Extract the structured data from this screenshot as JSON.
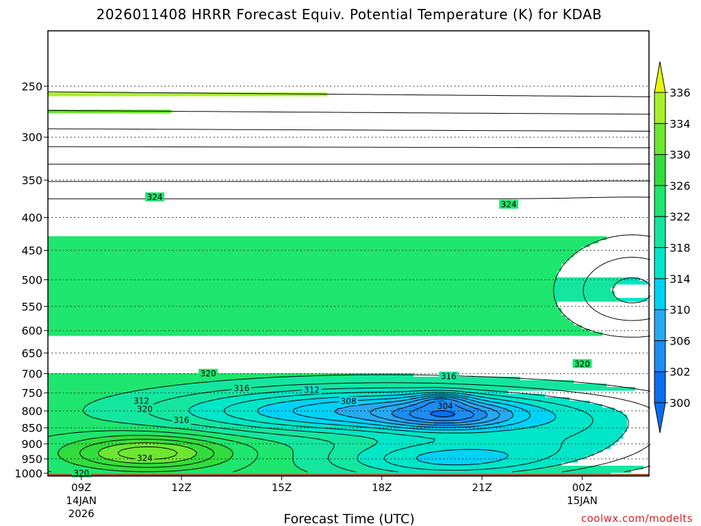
{
  "chart_data": {
    "type": "heatmap",
    "title": "2026011408 HRRR Forecast Equiv. Potential Temperature (K) for KDAB",
    "xlabel": "Forecast Time (UTC)",
    "ylabel": "",
    "y_axis": {
      "scale": "log",
      "inverted": true,
      "range": [
        1010,
        205
      ],
      "ticks": [
        250,
        300,
        350,
        400,
        450,
        500,
        550,
        600,
        650,
        700,
        750,
        800,
        850,
        900,
        950,
        1000
      ],
      "grid": "dotted"
    },
    "x_axis": {
      "range_hours": [
        8,
        26
      ],
      "ticks": [
        {
          "hour": 9,
          "label": "09Z",
          "sub1": "14JAN",
          "sub2": "2026"
        },
        {
          "hour": 12,
          "label": "12Z",
          "sub1": "",
          "sub2": ""
        },
        {
          "hour": 15,
          "label": "15Z",
          "sub1": "",
          "sub2": ""
        },
        {
          "hour": 18,
          "label": "18Z",
          "sub1": "",
          "sub2": ""
        },
        {
          "hour": 21,
          "label": "21Z",
          "sub1": "",
          "sub2": ""
        },
        {
          "hour": 24,
          "label": "00Z",
          "sub1": "15JAN",
          "sub2": ""
        }
      ]
    },
    "colorbar": {
      "levels": [
        300,
        302,
        306,
        310,
        314,
        318,
        322,
        326,
        330,
        334,
        336
      ],
      "tick_labels": [
        "300",
        "302",
        "306",
        "310",
        "314",
        "318",
        "322",
        "326",
        "330",
        "334",
        "336"
      ],
      "colors": [
        "#0a6ef0",
        "#1e8cf0",
        "#28aaf0",
        "#00d2f5",
        "#00e6c8",
        "#14e6a0",
        "#1ee66e",
        "#32dc3c",
        "#6ee632",
        "#aaf028",
        "#e6f50a"
      ],
      "extend": "both"
    },
    "contour_labels": [
      {
        "hour": 11.2,
        "p": 372,
        "text": "324"
      },
      {
        "hour": 21.8,
        "p": 382,
        "text": "324"
      },
      {
        "hour": 12.8,
        "p": 700,
        "text": "320"
      },
      {
        "hour": 24.0,
        "p": 676,
        "text": "320"
      },
      {
        "hour": 20.0,
        "p": 707,
        "text": "316"
      },
      {
        "hour": 13.8,
        "p": 738,
        "text": "316"
      },
      {
        "hour": 15.9,
        "p": 742,
        "text": "312"
      },
      {
        "hour": 10.8,
        "p": 772,
        "text": "312"
      },
      {
        "hour": 10.9,
        "p": 795,
        "text": "320"
      },
      {
        "hour": 12.0,
        "p": 827,
        "text": "316"
      },
      {
        "hour": 17.0,
        "p": 773,
        "text": "308"
      },
      {
        "hour": 19.9,
        "p": 786,
        "text": "304"
      },
      {
        "hour": 10.9,
        "p": 948,
        "text": "324"
      },
      {
        "hour": 9.0,
        "p": 1000,
        "text": "320"
      }
    ],
    "grid": true,
    "legend": "colorbar-right"
  },
  "credit": "coolwx.com/modelts"
}
